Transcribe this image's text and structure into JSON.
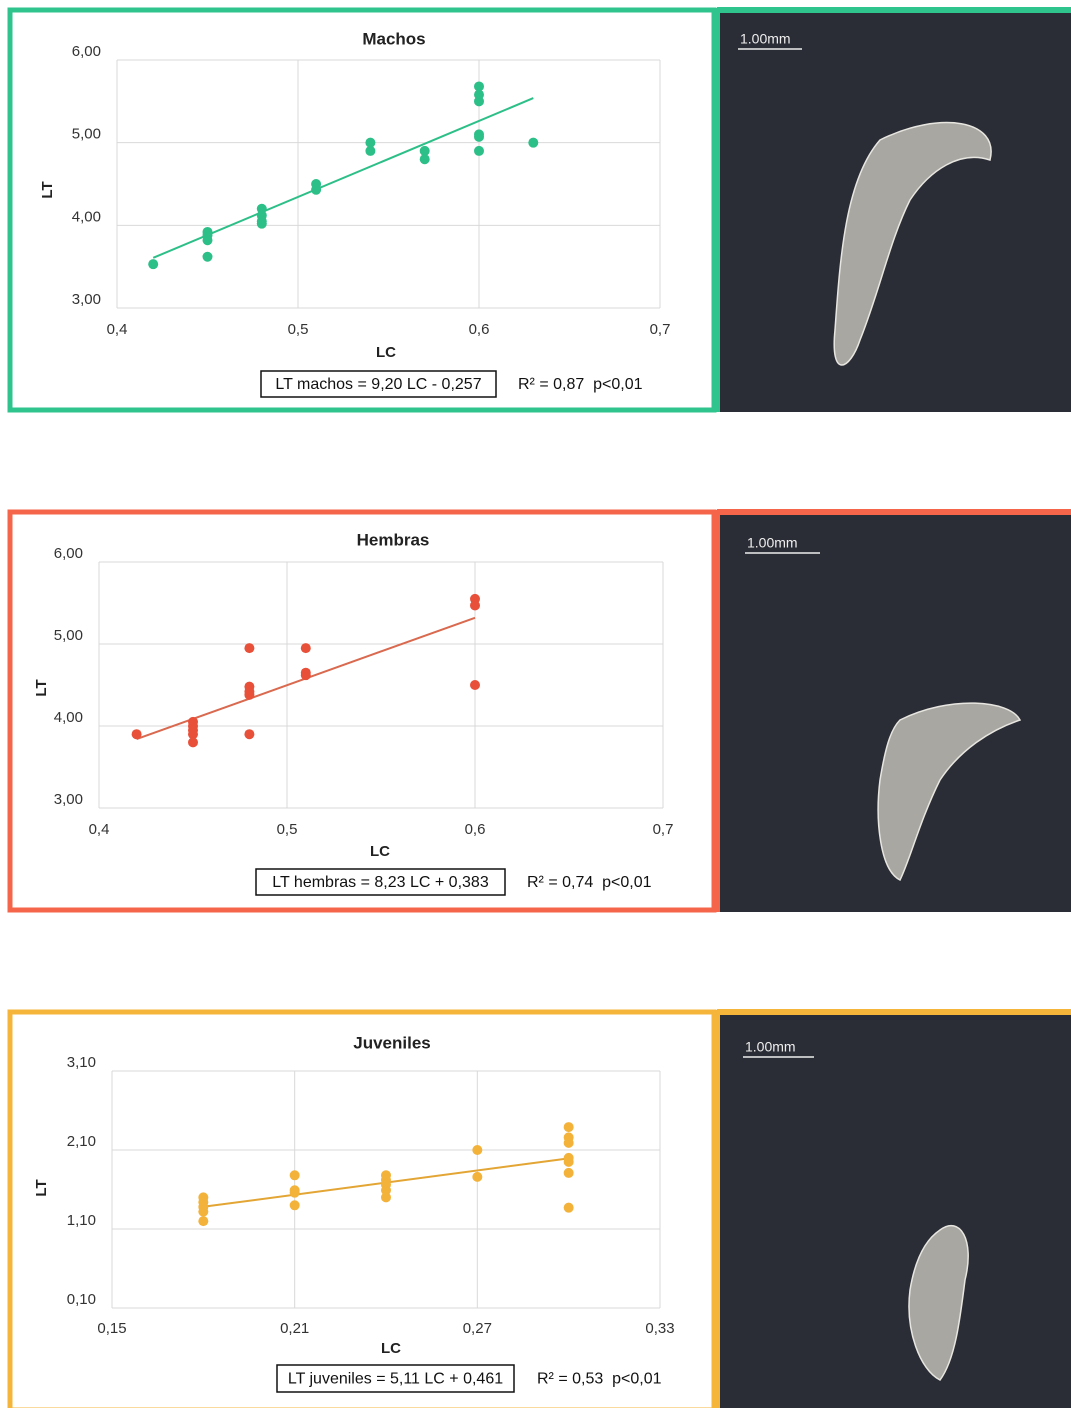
{
  "chart_data": [
    {
      "type": "scatter",
      "title": "Machos",
      "x_label": "LC",
      "y_label": "LT",
      "equation": "LT machos = 9,20 LC - 0,257",
      "stats": "R² = 0,87  p<0,01",
      "scale_label": "1.00mm",
      "border_color": "#2fc38e",
      "color": "#2dbf88",
      "grid": true,
      "x": [
        0.42,
        0.45,
        0.45,
        0.45,
        0.45,
        0.48,
        0.48,
        0.48,
        0.48,
        0.51,
        0.51,
        0.54,
        0.54,
        0.57,
        0.57,
        0.6,
        0.6,
        0.6,
        0.6,
        0.6,
        0.6,
        0.63
      ],
      "values": [
        3.53,
        3.92,
        3.88,
        3.82,
        3.62,
        4.2,
        4.12,
        4.05,
        4.02,
        4.5,
        4.43,
        5.0,
        4.9,
        4.9,
        4.8,
        5.68,
        5.58,
        5.5,
        5.1,
        5.07,
        4.9,
        5.0
      ],
      "trendline": {
        "x": [
          0.42,
          0.63
        ],
        "values": [
          3.607,
          5.539
        ],
        "color": "#2dbf88"
      },
      "xlim": [
        0.4,
        0.7
      ],
      "ylim": [
        3,
        6
      ],
      "xticks": [
        {
          "value": 0.4,
          "label": "0,4"
        },
        {
          "value": 0.5,
          "label": "0,5"
        },
        {
          "value": 0.6,
          "label": "0,6"
        },
        {
          "value": 0.7,
          "label": "0,7"
        }
      ],
      "yticks": [
        {
          "value": 3,
          "label": "3,00"
        },
        {
          "value": 4,
          "label": "4,00"
        },
        {
          "value": 5,
          "label": "5,00"
        },
        {
          "value": 6,
          "label": "6,00"
        }
      ]
    },
    {
      "type": "scatter",
      "title": "Hembras",
      "x_label": "LC",
      "y_label": "LT",
      "equation": "LT hembras = 8,23 LC + 0,383",
      "stats": "R² = 0,74  p<0,01",
      "scale_label": "1.00mm",
      "border_color": "#f4654a",
      "color": "#e8503a",
      "grid": true,
      "x": [
        0.42,
        0.45,
        0.45,
        0.45,
        0.45,
        0.45,
        0.48,
        0.48,
        0.48,
        0.48,
        0.48,
        0.51,
        0.51,
        0.51,
        0.6,
        0.6,
        0.6
      ],
      "values": [
        3.9,
        4.05,
        4.0,
        3.95,
        3.9,
        3.8,
        4.95,
        4.48,
        4.42,
        4.38,
        3.9,
        4.95,
        4.65,
        4.62,
        5.55,
        5.47,
        4.5
      ],
      "trendline": {
        "x": [
          0.42,
          0.6
        ],
        "values": [
          3.84,
          5.32
        ],
        "color": "#d9694f"
      },
      "xlim": [
        0.4,
        0.7
      ],
      "ylim": [
        3,
        6
      ],
      "xticks": [
        {
          "value": 0.4,
          "label": "0,4"
        },
        {
          "value": 0.5,
          "label": "0,5"
        },
        {
          "value": 0.6,
          "label": "0,6"
        },
        {
          "value": 0.7,
          "label": "0,7"
        }
      ],
      "yticks": [
        {
          "value": 3,
          "label": "3,00"
        },
        {
          "value": 4,
          "label": "4,00"
        },
        {
          "value": 5,
          "label": "5,00"
        },
        {
          "value": 6,
          "label": "6,00"
        }
      ]
    },
    {
      "type": "scatter",
      "title": "Juveniles",
      "x_label": "LC",
      "y_label": "LT",
      "equation": "LT juveniles  = 5,11  LC + 0,461",
      "stats": "R² = 0,53  p<0,01",
      "scale_label": "1.00mm",
      "border_color": "#f5b53b",
      "color": "#f3b23a",
      "grid": true,
      "x": [
        0.18,
        0.18,
        0.18,
        0.18,
        0.18,
        0.21,
        0.21,
        0.21,
        0.21,
        0.24,
        0.24,
        0.24,
        0.24,
        0.24,
        0.27,
        0.27,
        0.3,
        0.3,
        0.3,
        0.3,
        0.3,
        0.3,
        0.3
      ],
      "values": [
        1.5,
        1.44,
        1.38,
        1.32,
        1.2,
        1.78,
        1.59,
        1.56,
        1.4,
        1.78,
        1.72,
        1.66,
        1.59,
        1.5,
        2.1,
        1.76,
        2.39,
        2.26,
        2.19,
        2.0,
        1.95,
        1.81,
        1.37
      ],
      "trendline": {
        "x": [
          0.18,
          0.3
        ],
        "values": [
          1.381,
          1.994
        ],
        "color": "#e3a534"
      },
      "xlim": [
        0.15,
        0.33
      ],
      "ylim": [
        0.1,
        3.1
      ],
      "xticks": [
        {
          "value": 0.15,
          "label": "0,15"
        },
        {
          "value": 0.21,
          "label": "0,21"
        },
        {
          "value": 0.27,
          "label": "0,27"
        },
        {
          "value": 0.33,
          "label": "0,33"
        }
      ],
      "yticks": [
        {
          "value": 0.1,
          "label": "0,10"
        },
        {
          "value": 1.1,
          "label": "1,10"
        },
        {
          "value": 2.1,
          "label": "2,10"
        },
        {
          "value": 3.1,
          "label": "3,10"
        }
      ]
    }
  ]
}
